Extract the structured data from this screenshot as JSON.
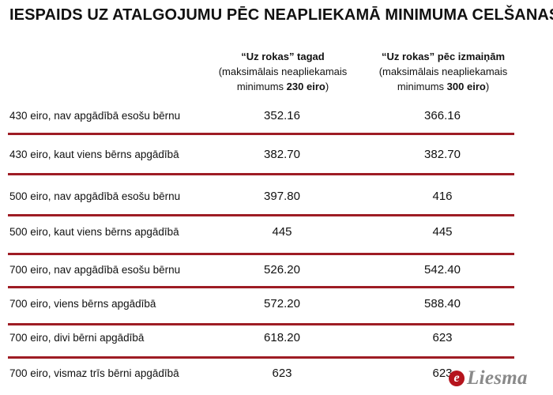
{
  "title": "IESPAIDS UZ ATALGOJUMU PĒC NEAPLIEKAMĀ MINIMUMA CELŠANAS",
  "columns": [
    {
      "heading": "“Uz rokas” tagad",
      "note_line1": "(maksimālais neapliekamais",
      "note_prefix": "minimums ",
      "note_amount": "230 eiro",
      "note_suffix": ")"
    },
    {
      "heading": "“Uz rokas” pēc izmaiņām",
      "note_line1": "(maksimālais neapliekamais",
      "note_prefix": "minimums ",
      "note_amount": "300 eiro",
      "note_suffix": ")"
    }
  ],
  "rows": [
    {
      "label": "430 eiro, nav apgādībā esošu bērnu",
      "now": "352.16",
      "after": "366.16"
    },
    {
      "label": "430 eiro, kaut viens bērns apgādībā",
      "now": "382.70",
      "after": "382.70"
    },
    {
      "label": "500 eiro, nav apgādībā esošu bērnu",
      "now": "397.80",
      "after": "416"
    },
    {
      "label": "500 eiro, kaut viens bērns apgādībā",
      "now": "445",
      "after": "445"
    },
    {
      "label": "700 eiro, nav apgādībā esošu bērnu",
      "now": "526.20",
      "after": "542.40"
    },
    {
      "label": "700 eiro, viens bērns apgādībā",
      "now": "572.20",
      "after": "588.40"
    },
    {
      "label": "700 eiro, divi bērni apgādībā",
      "now": "618.20",
      "after": "623"
    },
    {
      "label": "700 eiro, vismaz trīs bērni apgādībā",
      "now": "623",
      "after": "623"
    }
  ],
  "logo": {
    "mark": "e",
    "name": "Liesma"
  },
  "colors": {
    "divider": "#9e1c24",
    "logo_mark": "#b5141d",
    "logo_text": "#8a8a8a"
  }
}
